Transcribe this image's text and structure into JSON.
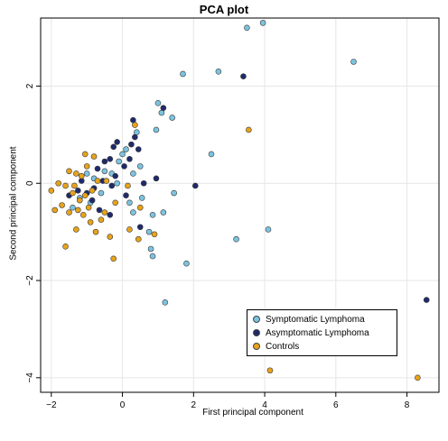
{
  "chart_data": {
    "type": "scatter",
    "title": "PCA plot",
    "xlabel": "First principal component",
    "ylabel": "Second principal component",
    "xlim": [
      -2.3,
      8.9
    ],
    "ylim": [
      -4.3,
      3.4
    ],
    "x_ticks": [
      -2,
      0,
      2,
      4,
      6,
      8
    ],
    "y_ticks": [
      -4,
      -2,
      0,
      2
    ],
    "grid": true,
    "legend_position": "bottom-right",
    "series": [
      {
        "name": "Symptomatic Lymphoma",
        "color": "#7cc3e0",
        "points": [
          [
            3.5,
            3.2
          ],
          [
            3.95,
            3.3
          ],
          [
            6.5,
            2.5
          ],
          [
            1.7,
            2.25
          ],
          [
            2.7,
            2.3
          ],
          [
            1.0,
            1.65
          ],
          [
            1.1,
            1.45
          ],
          [
            1.4,
            1.35
          ],
          [
            0.4,
            1.05
          ],
          [
            0.95,
            1.1
          ],
          [
            2.5,
            0.6
          ],
          [
            3.2,
            -1.15
          ],
          [
            4.1,
            -0.95
          ],
          [
            1.8,
            -1.65
          ],
          [
            1.2,
            -2.45
          ],
          [
            0.85,
            -0.65
          ],
          [
            1.15,
            -0.6
          ],
          [
            0.75,
            -1.0
          ],
          [
            0.85,
            -1.5
          ],
          [
            0.8,
            -1.35
          ],
          [
            1.45,
            -0.2
          ],
          [
            0.3,
            0.2
          ],
          [
            0.5,
            0.35
          ],
          [
            0.1,
            0.7
          ],
          [
            0.0,
            0.6
          ],
          [
            -0.1,
            0.45
          ],
          [
            -0.15,
            0.0
          ],
          [
            -0.3,
            0.2
          ],
          [
            -0.5,
            0.25
          ],
          [
            -0.8,
            0.1
          ],
          [
            -0.6,
            -0.2
          ],
          [
            -0.9,
            -0.4
          ],
          [
            -1.2,
            -0.3
          ],
          [
            -1.4,
            -0.5
          ],
          [
            -1.0,
            0.2
          ],
          [
            0.2,
            -0.4
          ],
          [
            0.55,
            -0.3
          ],
          [
            0.3,
            -0.6
          ]
        ]
      },
      {
        "name": "Asymptomatic Lymphoma",
        "color": "#1f2a6b",
        "points": [
          [
            3.4,
            2.2
          ],
          [
            1.15,
            1.55
          ],
          [
            8.55,
            -2.4
          ],
          [
            2.05,
            -0.05
          ],
          [
            0.3,
            1.3
          ],
          [
            0.35,
            0.95
          ],
          [
            0.25,
            0.8
          ],
          [
            0.45,
            0.7
          ],
          [
            -0.15,
            0.85
          ],
          [
            -0.25,
            0.75
          ],
          [
            -0.35,
            0.5
          ],
          [
            0.05,
            0.35
          ],
          [
            0.2,
            0.5
          ],
          [
            -0.5,
            0.45
          ],
          [
            -0.7,
            0.3
          ],
          [
            -0.2,
            0.15
          ],
          [
            -0.55,
            0.05
          ],
          [
            -0.3,
            -0.05
          ],
          [
            -0.8,
            -0.1
          ],
          [
            -1.0,
            -0.2
          ],
          [
            -1.15,
            0.05
          ],
          [
            -1.25,
            -0.15
          ],
          [
            -0.85,
            -0.35
          ],
          [
            -1.5,
            -0.25
          ],
          [
            -0.65,
            -0.55
          ],
          [
            0.1,
            -0.25
          ],
          [
            0.6,
            0.0
          ],
          [
            0.95,
            0.1
          ],
          [
            -0.35,
            -0.65
          ],
          [
            0.5,
            -0.9
          ]
        ]
      },
      {
        "name": "Controls",
        "color": "#e8a31a",
        "points": [
          [
            3.55,
            1.1
          ],
          [
            4.15,
            -3.85
          ],
          [
            8.3,
            -4.0
          ],
          [
            0.35,
            1.2
          ],
          [
            -0.8,
            0.55
          ],
          [
            -1.05,
            0.6
          ],
          [
            -1.5,
            0.25
          ],
          [
            -1.0,
            0.35
          ],
          [
            -1.3,
            0.2
          ],
          [
            -1.15,
            0.15
          ],
          [
            -1.8,
            0.0
          ],
          [
            -2.0,
            -0.15
          ],
          [
            -1.6,
            -0.05
          ],
          [
            -1.4,
            -0.2
          ],
          [
            -1.2,
            -0.35
          ],
          [
            -1.05,
            -0.25
          ],
          [
            -0.95,
            -0.5
          ],
          [
            -1.25,
            -0.55
          ],
          [
            -1.5,
            -0.6
          ],
          [
            -1.7,
            -0.45
          ],
          [
            -1.9,
            -0.55
          ],
          [
            -1.6,
            -1.3
          ],
          [
            -1.3,
            -0.95
          ],
          [
            -0.9,
            -0.8
          ],
          [
            -0.75,
            -1.0
          ],
          [
            -0.6,
            -0.75
          ],
          [
            -0.35,
            -1.1
          ],
          [
            -0.5,
            -0.6
          ],
          [
            -0.2,
            -0.4
          ],
          [
            0.2,
            -0.95
          ],
          [
            0.15,
            -0.05
          ],
          [
            0.5,
            -0.5
          ],
          [
            0.9,
            -1.05
          ],
          [
            -0.25,
            -1.55
          ],
          [
            0.45,
            -1.15
          ],
          [
            -0.7,
            0.05
          ],
          [
            -0.45,
            0.05
          ],
          [
            -0.85,
            -0.15
          ],
          [
            -1.35,
            -0.05
          ],
          [
            -1.1,
            -0.65
          ]
        ]
      }
    ]
  }
}
